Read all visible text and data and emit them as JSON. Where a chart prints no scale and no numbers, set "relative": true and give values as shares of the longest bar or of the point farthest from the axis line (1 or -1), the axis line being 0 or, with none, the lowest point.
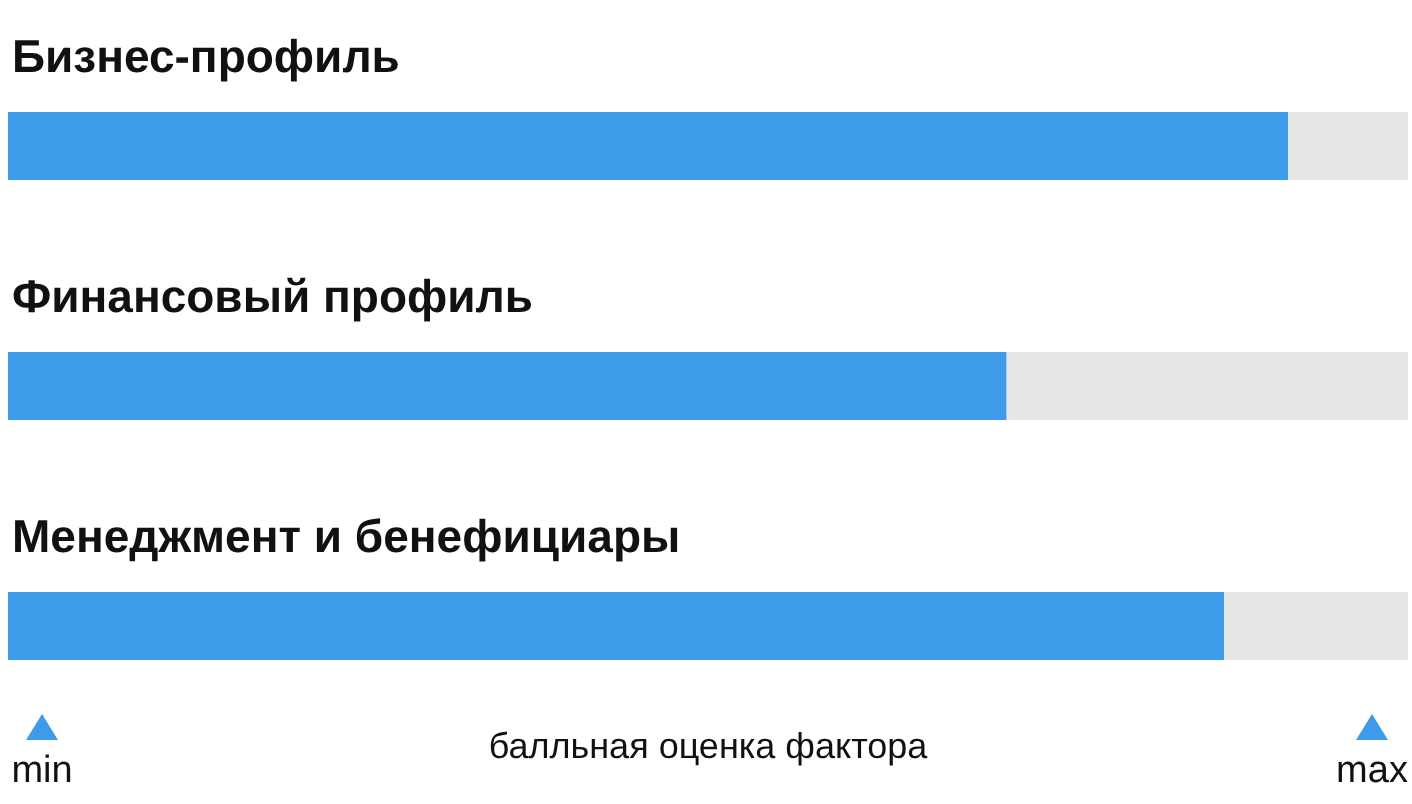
{
  "chart_data": {
    "type": "bar",
    "orientation": "horizontal",
    "relative": true,
    "categories": [
      "Бизнес-профиль",
      "Финансовый профиль",
      "Менеджмент и бенефициары"
    ],
    "values": [
      1,
      0.78,
      0.95
    ],
    "color": "#3d9be9",
    "xlabel": "балльная оценка фактора",
    "annotations": [
      "min",
      "max"
    ]
  }
}
